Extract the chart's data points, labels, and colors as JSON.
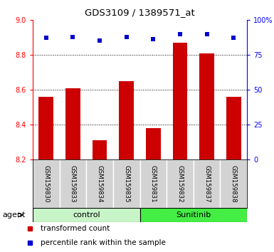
{
  "title": "GDS3109 / 1389571_at",
  "samples": [
    "GSM159830",
    "GSM159833",
    "GSM159834",
    "GSM159835",
    "GSM159831",
    "GSM159832",
    "GSM159837",
    "GSM159838"
  ],
  "red_values": [
    8.56,
    8.61,
    8.31,
    8.65,
    8.38,
    8.87,
    8.81,
    8.56
  ],
  "blue_values": [
    87,
    88,
    85,
    88,
    86,
    90,
    90,
    87
  ],
  "ylim_left": [
    8.2,
    9.0
  ],
  "ylim_right": [
    0,
    100
  ],
  "yticks_left": [
    8.2,
    8.4,
    8.6,
    8.8,
    9.0
  ],
  "yticks_right": [
    0,
    25,
    50,
    75,
    100
  ],
  "ytick_labels_right": [
    "0",
    "25",
    "50",
    "75",
    "100%"
  ],
  "bar_color": "#cc0000",
  "dot_color": "#0000cc",
  "bar_bottom": 8.2,
  "groups": [
    {
      "label": "control",
      "start": 0,
      "end": 4,
      "color": "#c8f5c8"
    },
    {
      "label": "Sunitinib",
      "start": 4,
      "end": 8,
      "color": "#44ee44"
    }
  ],
  "group_row_label": "agent",
  "legend_red": "transformed count",
  "legend_blue": "percentile rank within the sample",
  "background_color": "#ffffff",
  "plot_bg": "#ffffff",
  "label_area_bg": "#d3d3d3",
  "dotted_gridlines": [
    8.4,
    8.6,
    8.8
  ],
  "bar_width": 0.55,
  "fig_w": 3.85,
  "fig_h": 3.54,
  "dpi": 100
}
